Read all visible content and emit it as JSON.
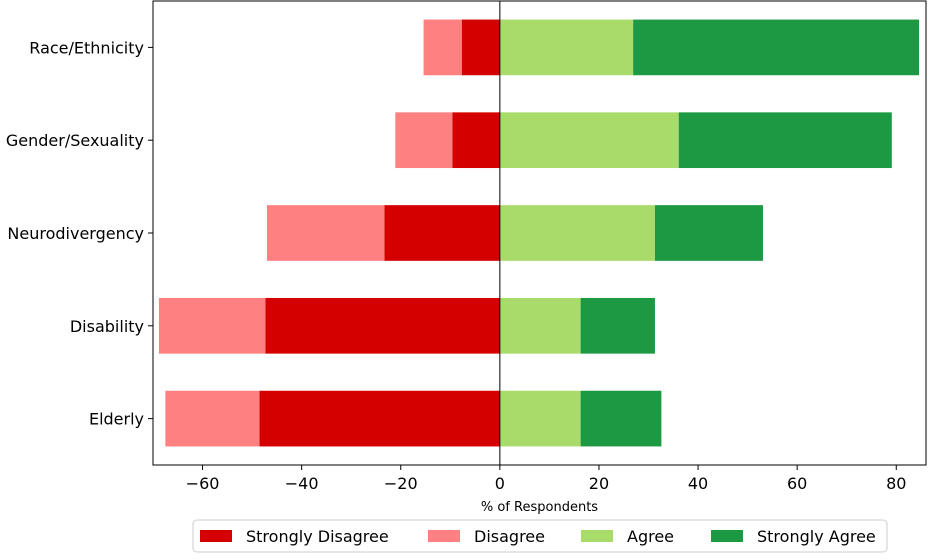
{
  "chart_data": {
    "type": "bar",
    "orientation": "horizontal",
    "stacked": "diverging",
    "categories": [
      "Race/Ethnicity",
      "Gender/Sexuality",
      "Neurodivergency",
      "Disability",
      "Elderly"
    ],
    "series": [
      {
        "name": "Strongly Disagree",
        "color": "#d40000",
        "values": [
          -7.7,
          -9.6,
          -23.3,
          -47.3,
          -48.5
        ]
      },
      {
        "name": "Disagree",
        "color": "#ff8080",
        "values": [
          -7.7,
          -11.5,
          -23.7,
          -21.5,
          -19.0
        ]
      },
      {
        "name": "Agree",
        "color": "#a8db6a",
        "values": [
          26.9,
          36.1,
          31.3,
          16.3,
          16.3
        ]
      },
      {
        "name": "Strongly Agree",
        "color": "#1e9943",
        "values": [
          57.7,
          43.0,
          21.8,
          15.0,
          16.3
        ]
      }
    ],
    "xlabel": "% of Respondents",
    "ylabel": "",
    "xlim": [
      -70,
      86
    ],
    "xticks": [
      -60,
      -40,
      -20,
      0,
      20,
      40,
      60,
      80
    ],
    "xtick_labels": [
      "−60",
      "−40",
      "−20",
      "0",
      "20",
      "40",
      "60",
      "80"
    ],
    "grid": false,
    "legend_position": "bottom"
  }
}
